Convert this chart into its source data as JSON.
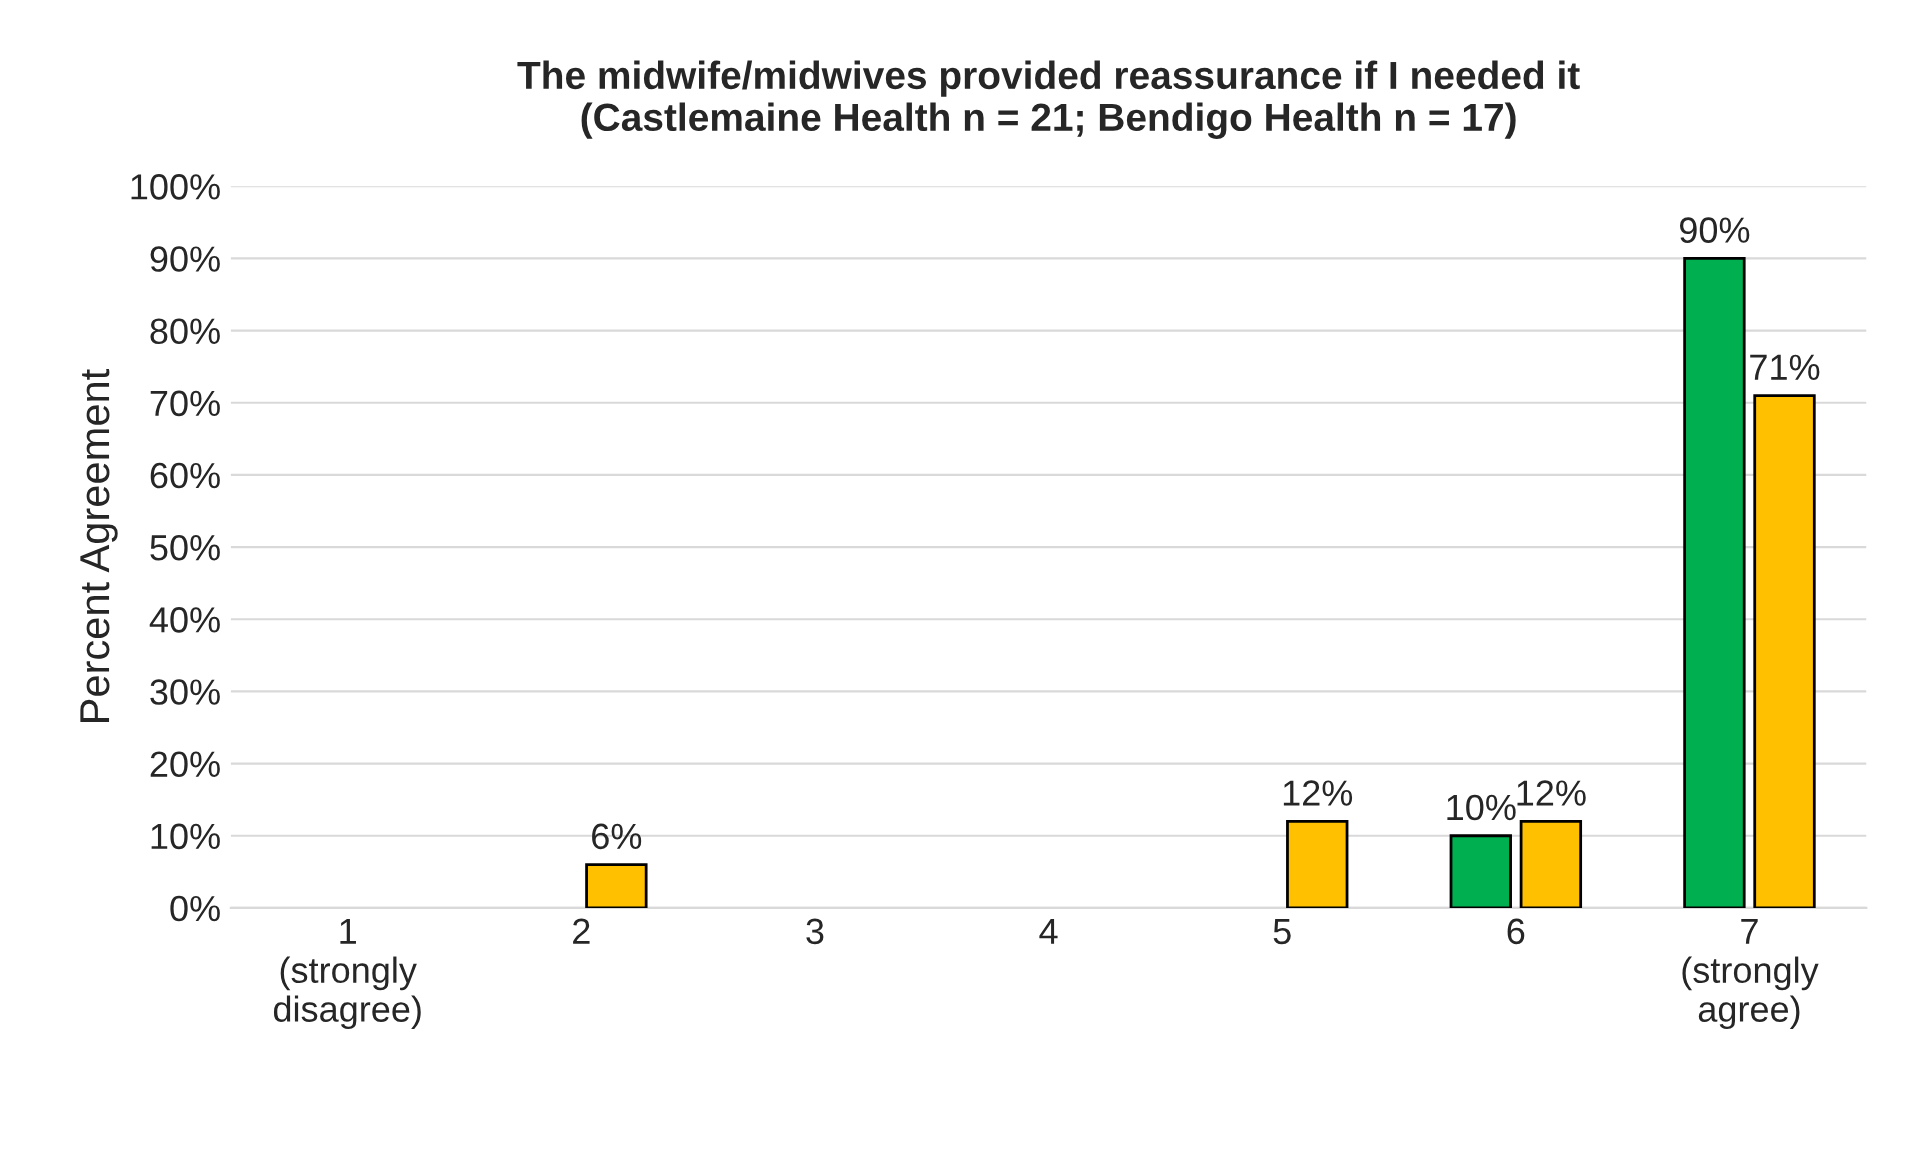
{
  "chart_data": {
    "type": "bar",
    "title": "The midwife/midwives provided reassurance if I needed it\n(Castlemaine Health n = 21; Bendigo Health n = 17)",
    "ylabel": "Percent Agreement",
    "categories": [
      "1\n(strongly\ndisagree)",
      "2",
      "3",
      "4",
      "5",
      "6",
      "7\n(strongly\nagree)"
    ],
    "series": [
      {
        "color": "#00b050",
        "values": [
          null,
          null,
          null,
          null,
          null,
          10,
          90
        ],
        "value_labels": [
          null,
          null,
          null,
          null,
          null,
          "10%",
          "90%"
        ]
      },
      {
        "color": "#ffc000",
        "values": [
          null,
          6,
          null,
          null,
          12,
          12,
          71
        ],
        "value_labels": [
          null,
          "6%",
          null,
          null,
          "12%",
          "12%",
          "71%"
        ]
      }
    ],
    "ylim": [
      0,
      100
    ],
    "yticks": [
      {
        "value": 0,
        "label": "0%"
      },
      {
        "value": 10,
        "label": "10%"
      },
      {
        "value": 20,
        "label": "20%"
      },
      {
        "value": 30,
        "label": "30%"
      },
      {
        "value": 40,
        "label": "40%"
      },
      {
        "value": 50,
        "label": "50%"
      },
      {
        "value": 60,
        "label": "60%"
      },
      {
        "value": 70,
        "label": "70%"
      },
      {
        "value": 80,
        "label": "80%"
      },
      {
        "value": 90,
        "label": "90%"
      },
      {
        "value": 100,
        "label": "100%"
      }
    ],
    "grid": "y",
    "legend": false
  }
}
